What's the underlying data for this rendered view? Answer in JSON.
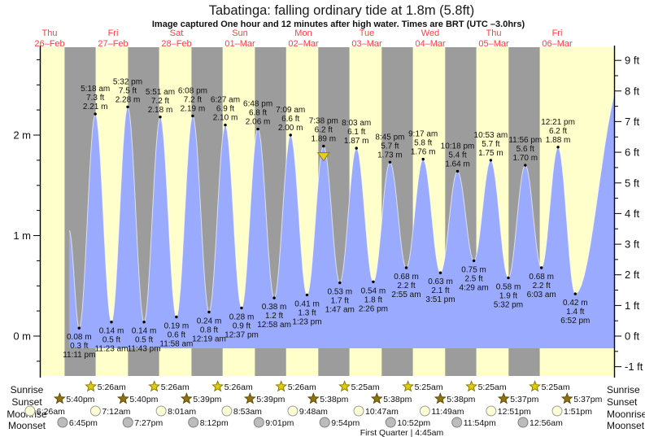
{
  "header": {
    "title": "Tabatinga: falling  ordinary tide at 1.8m (5.8ft)",
    "subtitle": "Image captured One hour and 12 minutes after high water. Times are BRT (UTC –3.0hrs)"
  },
  "astro_labels": {
    "sunrise": "Sunrise",
    "sunset": "Sunset",
    "moonrise": "Moonrise",
    "moonset": "Moonset"
  },
  "moon_phase": "First Quarter | 4:45am",
  "axes": {
    "left_labels": [
      {
        "text": "2 m",
        "m": 2
      },
      {
        "text": "1 m",
        "m": 1
      },
      {
        "text": "0 m",
        "m": 0
      }
    ],
    "right_labels": [
      {
        "text": "9 ft",
        "ft": 9
      },
      {
        "text": "8 ft",
        "ft": 8
      },
      {
        "text": "7 ft",
        "ft": 7
      },
      {
        "text": "6 ft",
        "ft": 6
      },
      {
        "text": "5 ft",
        "ft": 5
      },
      {
        "text": "4 ft",
        "ft": 4
      },
      {
        "text": "3 ft",
        "ft": 3
      },
      {
        "text": "2 ft",
        "ft": 2
      },
      {
        "text": "1 ft",
        "ft": 1
      },
      {
        "text": "0 ft",
        "ft": 0
      },
      {
        "text": "-1 ft",
        "ft": -1
      }
    ]
  },
  "chart_data": {
    "type": "area",
    "title": "Tabatinga: falling  ordinary tide at 1.8m (5.8ft)",
    "ylabel_left": "m",
    "ylabel_right": "ft",
    "ylim_m": [
      -0.42,
      2.87
    ],
    "ylim_ft": [
      -1,
      9
    ],
    "grid": false,
    "days": [
      {
        "weekday": "Thu",
        "date": "26–Feb"
      },
      {
        "weekday": "Fri",
        "date": "27–Feb"
      },
      {
        "weekday": "Sat",
        "date": "28–Feb"
      },
      {
        "weekday": "Sun",
        "date": "01–Mar"
      },
      {
        "weekday": "Mon",
        "date": "02–Mar"
      },
      {
        "weekday": "Tue",
        "date": "03–Mar"
      },
      {
        "weekday": "Wed",
        "date": "04–Mar"
      },
      {
        "weekday": "Thu",
        "date": "05–Mar"
      },
      {
        "weekday": "Fri",
        "date": "06–Mar"
      }
    ],
    "tide_events": [
      {
        "day": 0,
        "time": "11:11 pm",
        "ft": "0.3",
        "m": "0.08",
        "type": "low"
      },
      {
        "day": 1,
        "time": "5:18 am",
        "ft": "7.3",
        "m": "2.21",
        "type": "high"
      },
      {
        "day": 1,
        "time": "11:23 am",
        "ft": "0.5",
        "m": "0.14",
        "type": "low"
      },
      {
        "day": 1,
        "time": "5:32 pm",
        "ft": "7.5",
        "m": "2.28",
        "type": "high"
      },
      {
        "day": 1,
        "time": "11:43 pm",
        "ft": "0.5",
        "m": "0.14",
        "type": "low"
      },
      {
        "day": 2,
        "time": "5:51 am",
        "ft": "7.2",
        "m": "2.18",
        "type": "high"
      },
      {
        "day": 2,
        "time": "11:58 am",
        "ft": "0.6",
        "m": "0.19",
        "type": "low"
      },
      {
        "day": 2,
        "time": "6:08 pm",
        "ft": "7.2",
        "m": "2.19",
        "type": "high"
      },
      {
        "day": 3,
        "time": "12:19 am",
        "ft": "0.8",
        "m": "0.24",
        "type": "low"
      },
      {
        "day": 3,
        "time": "6:27 am",
        "ft": "6.9",
        "m": "2.10",
        "type": "high"
      },
      {
        "day": 3,
        "time": "12:37 pm",
        "ft": "0.9",
        "m": "0.28",
        "type": "low"
      },
      {
        "day": 3,
        "time": "6:48 pm",
        "ft": "6.8",
        "m": "2.06",
        "type": "high"
      },
      {
        "day": 4,
        "time": "12:58 am",
        "ft": "1.2",
        "m": "0.38",
        "type": "low"
      },
      {
        "day": 4,
        "time": "7:09 am",
        "ft": "6.6",
        "m": "2.00",
        "type": "high"
      },
      {
        "day": 4,
        "time": "1:23 pm",
        "ft": "1.3",
        "m": "0.41",
        "type": "low"
      },
      {
        "day": 4,
        "time": "7:38 pm",
        "ft": "6.2",
        "m": "1.89",
        "type": "high",
        "current": true
      },
      {
        "day": 5,
        "time": "1:47 am",
        "ft": "1.7",
        "m": "0.53",
        "type": "low"
      },
      {
        "day": 5,
        "time": "8:03 am",
        "ft": "6.1",
        "m": "1.87",
        "type": "high"
      },
      {
        "day": 5,
        "time": "2:26 pm",
        "ft": "1.8",
        "m": "0.54",
        "type": "low"
      },
      {
        "day": 5,
        "time": "8:45 pm",
        "ft": "5.7",
        "m": "1.73",
        "type": "high"
      },
      {
        "day": 6,
        "time": "2:55 am",
        "ft": "2.2",
        "m": "0.68",
        "type": "low"
      },
      {
        "day": 6,
        "time": "9:17 am",
        "ft": "5.8",
        "m": "1.76",
        "type": "high"
      },
      {
        "day": 6,
        "time": "3:51 pm",
        "ft": "2.1",
        "m": "0.63",
        "type": "low"
      },
      {
        "day": 6,
        "time": "10:18 pm",
        "ft": "5.4",
        "m": "1.64",
        "type": "high"
      },
      {
        "day": 7,
        "time": "4:29 am",
        "ft": "2.5",
        "m": "0.75",
        "type": "low"
      },
      {
        "day": 7,
        "time": "10:53 am",
        "ft": "5.7",
        "m": "1.75",
        "type": "high"
      },
      {
        "day": 7,
        "time": "5:32 pm",
        "ft": "1.9",
        "m": "0.58",
        "type": "low"
      },
      {
        "day": 7,
        "time": "11:56 pm",
        "ft": "5.6",
        "m": "1.70",
        "type": "high"
      },
      {
        "day": 8,
        "time": "6:03 am",
        "ft": "2.2",
        "m": "0.68",
        "type": "low"
      },
      {
        "day": 8,
        "time": "12:21 pm",
        "ft": "6.2",
        "m": "1.88",
        "type": "high"
      },
      {
        "day": 8,
        "time": "6:52 pm",
        "ft": "1.4",
        "m": "0.42",
        "type": "low"
      }
    ],
    "curve_start": {
      "day": 0,
      "time": "7:25 pm",
      "m": "1.05"
    },
    "curve_end": {
      "day": 9,
      "time": "12:40 pm",
      "m": "2.55"
    },
    "astro": {
      "sunrise": [
        {
          "day": 1,
          "time": "5:26am"
        },
        {
          "day": 2,
          "time": "5:26am"
        },
        {
          "day": 3,
          "time": "5:26am"
        },
        {
          "day": 4,
          "time": "5:26am"
        },
        {
          "day": 5,
          "time": "5:25am"
        },
        {
          "day": 6,
          "time": "5:25am"
        },
        {
          "day": 7,
          "time": "5:25am"
        },
        {
          "day": 8,
          "time": "5:25am"
        }
      ],
      "sunset": [
        {
          "day": 0,
          "time": "5:40pm"
        },
        {
          "day": 1,
          "time": "5:40pm"
        },
        {
          "day": 2,
          "time": "5:39pm"
        },
        {
          "day": 3,
          "time": "5:39pm"
        },
        {
          "day": 4,
          "time": "5:38pm"
        },
        {
          "day": 5,
          "time": "5:38pm"
        },
        {
          "day": 6,
          "time": "5:38pm"
        },
        {
          "day": 7,
          "time": "5:37pm"
        },
        {
          "day": 8,
          "time": "5:37pm"
        }
      ],
      "moonrise": [
        {
          "day": 0,
          "time": "6:26am"
        },
        {
          "day": 1,
          "time": "7:12am"
        },
        {
          "day": 2,
          "time": "8:01am"
        },
        {
          "day": 3,
          "time": "8:53am"
        },
        {
          "day": 4,
          "time": "9:48am"
        },
        {
          "day": 5,
          "time": "10:47am"
        },
        {
          "day": 6,
          "time": "11:49am"
        },
        {
          "day": 7,
          "time": "12:51pm"
        },
        {
          "day": 8,
          "time": "1:51pm"
        }
      ],
      "moonset": [
        {
          "day": 0,
          "time": "6:45pm"
        },
        {
          "day": 1,
          "time": "7:27pm"
        },
        {
          "day": 2,
          "time": "8:12pm"
        },
        {
          "day": 3,
          "time": "9:01pm"
        },
        {
          "day": 4,
          "time": "9:54pm"
        },
        {
          "day": 5,
          "time": "10:52pm"
        },
        {
          "day": 6,
          "time": "11:54pm"
        },
        {
          "day": 8,
          "time": "12:56am"
        }
      ]
    },
    "colors": {
      "daylight": "#ffffcc",
      "night": "#9c9c9c",
      "water": "#99aaff",
      "day_label": "#ff4040",
      "marker": "#e6cf1a",
      "sunrise_icon": "#e2ce08",
      "sunset_icon": "#8f7414",
      "moonrise_icon": "#ffffd6",
      "moonset_icon": "#bcbcbc"
    }
  }
}
